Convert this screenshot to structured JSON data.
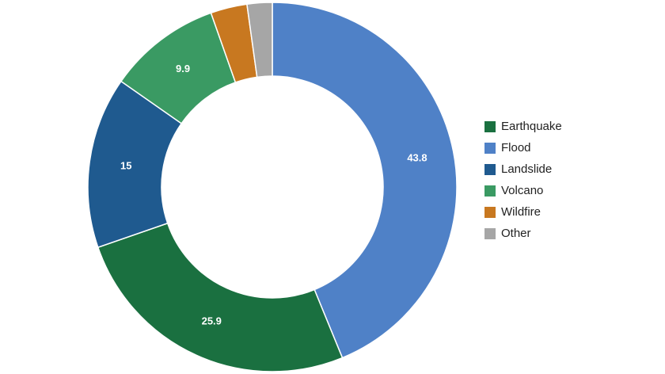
{
  "chart_data": {
    "type": "donut",
    "categories": [
      "Flood",
      "Earthquake",
      "Landslide",
      "Volcano",
      "Wildfire",
      "Other"
    ],
    "values": [
      43.8,
      25.9,
      15,
      9.9,
      3.2,
      2.2
    ],
    "colors": [
      "#4f81c7",
      "#1a7040",
      "#1f5a8f",
      "#3a9a63",
      "#c87820",
      "#a6a6a6"
    ],
    "legend": "right"
  }
}
